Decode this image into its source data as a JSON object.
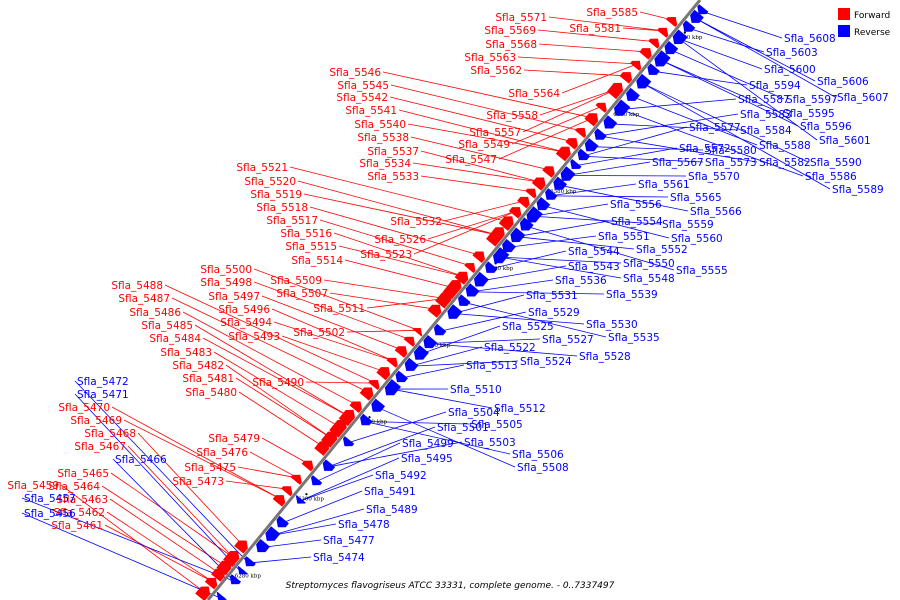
{
  "caption": "Streptomyces flavogriseus ATCC 33331, complete genome. - 0..7337497",
  "legend": [
    {
      "label": "Forward",
      "color": "#ff0000"
    },
    {
      "label": "Reverse",
      "color": "#0000ff"
    }
  ],
  "colors": {
    "forward": "#ff0000",
    "reverse": "#0000ff",
    "axis": "#777777"
  },
  "axis": {
    "from_kbp": 6271,
    "to_kbp": 6427
  },
  "ticks": [
    "6280 kbp",
    "6300 kbp",
    "6320 kbp",
    "6340 kbp",
    "6360 kbp",
    "6380 kbp",
    "6400 kbp",
    "6420 kbp"
  ],
  "forward_labels": [
    "Sfla_5459",
    "Sfla_5461",
    "Sfla_5462",
    "Sfla_5463",
    "Sfla_5464",
    "Sfla_5465",
    "Sfla_5467",
    "Sfla_5468",
    "Sfla_5469",
    "Sfla_5470",
    "Sfla_5473",
    "Sfla_5475",
    "Sfla_5476",
    "Sfla_5479",
    "Sfla_5480",
    "Sfla_5481",
    "Sfla_5482",
    "Sfla_5483",
    "Sfla_5484",
    "Sfla_5485",
    "Sfla_5486",
    "Sfla_5487",
    "Sfla_5488",
    "Sfla_5490",
    "Sfla_5493",
    "Sfla_5494",
    "Sfla_5496",
    "Sfla_5497",
    "Sfla_5498",
    "Sfla_5500",
    "Sfla_5502",
    "Sfla_5507",
    "Sfla_5509",
    "Sfla_5511",
    "Sfla_5514",
    "Sfla_5515",
    "Sfla_5516",
    "Sfla_5517",
    "Sfla_5518",
    "Sfla_5519",
    "Sfla_5520",
    "Sfla_5521",
    "Sfla_5523",
    "Sfla_5526",
    "Sfla_5532",
    "Sfla_5533",
    "Sfla_5534",
    "Sfla_5537",
    "Sfla_5538",
    "Sfla_5540",
    "Sfla_5541",
    "Sfla_5542",
    "Sfla_5545",
    "Sfla_5546",
    "Sfla_5547",
    "Sfla_5549",
    "Sfla_5557",
    "Sfla_5558",
    "Sfla_5562",
    "Sfla_5563",
    "Sfla_5564",
    "Sfla_5568",
    "Sfla_5569",
    "Sfla_5571",
    "Sfla_5581",
    "Sfla_5585"
  ],
  "reverse_labels": [
    "Sfla_5456",
    "Sfla_5457",
    "Sfla_5466",
    "Sfla_5471",
    "Sfla_5472",
    "Sfla_5474",
    "Sfla_5477",
    "Sfla_5478",
    "Sfla_5489",
    "Sfla_5491",
    "Sfla_5492",
    "Sfla_5495",
    "Sfla_5499",
    "Sfla_5501",
    "Sfla_5503",
    "Sfla_5504",
    "Sfla_5505",
    "Sfla_5506",
    "Sfla_5508",
    "Sfla_5510",
    "Sfla_5512",
    "Sfla_5513",
    "Sfla_5522",
    "Sfla_5524",
    "Sfla_5525",
    "Sfla_5527",
    "Sfla_5528",
    "Sfla_5529",
    "Sfla_5530",
    "Sfla_5531",
    "Sfla_5535",
    "Sfla_5536",
    "Sfla_5539",
    "Sfla_5543",
    "Sfla_5544",
    "Sfla_5548",
    "Sfla_5550",
    "Sfla_5551",
    "Sfla_5552",
    "Sfla_5554",
    "Sfla_5555",
    "Sfla_5556",
    "Sfla_5559",
    "Sfla_5560",
    "Sfla_5561",
    "Sfla_5565",
    "Sfla_5566",
    "Sfla_5567",
    "Sfla_5570",
    "Sfla_5572",
    "Sfla_5573",
    "Sfla_5577",
    "Sfla_5580",
    "Sfla_5582",
    "Sfla_5583",
    "Sfla_5584",
    "Sfla_5586",
    "Sfla_5587",
    "Sfla_5588",
    "Sfla_5589",
    "Sfla_5590",
    "Sfla_5594",
    "Sfla_5595",
    "Sfla_5596",
    "Sfla_5597",
    "Sfla_5600",
    "Sfla_5601",
    "Sfla_5603",
    "Sfla_5606",
    "Sfla_5607",
    "Sfla_5608"
  ]
}
